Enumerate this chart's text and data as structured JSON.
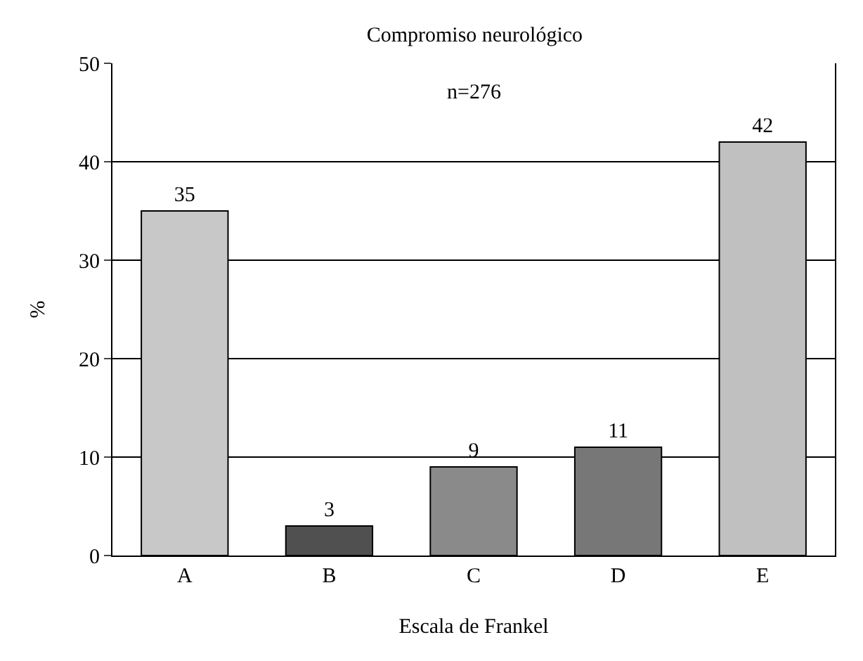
{
  "chart_data": {
    "type": "bar",
    "title": "Compromiso neurológico",
    "xlabel": "Escala de Frankel",
    "ylabel": "%",
    "categories": [
      "A",
      "B",
      "C",
      "D",
      "E"
    ],
    "values": [
      35,
      3,
      9,
      11,
      42
    ],
    "colors": [
      "#c8c8c8",
      "#505050",
      "#8a8a8a",
      "#777777",
      "#c0c0c0"
    ],
    "ylim": [
      0,
      50
    ],
    "yticks": [
      0,
      10,
      20,
      30,
      40,
      50
    ],
    "grid": "y",
    "data_labels": true,
    "annotations": [
      "n=276"
    ]
  }
}
